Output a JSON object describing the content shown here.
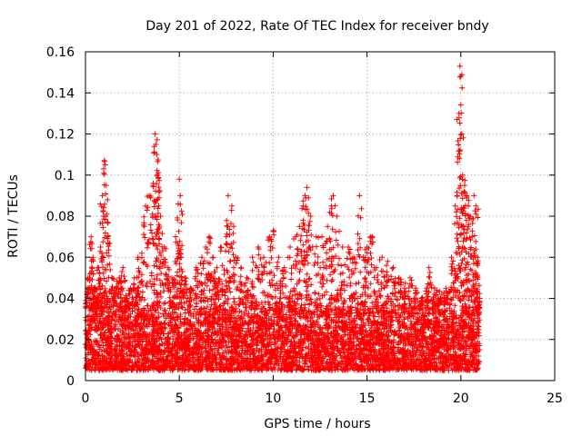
{
  "chart_data": {
    "type": "scatter",
    "title": "Day 201 of 2022, Rate Of TEC Index for receiver bndy",
    "xlabel": "GPS time / hours",
    "ylabel": "ROTI / TECUs",
    "xlim": [
      0,
      25
    ],
    "ylim": [
      0,
      0.16
    ],
    "x_ticks": [
      "0",
      "5",
      "10",
      "15",
      "20",
      "25"
    ],
    "y_ticks": [
      "0",
      "0.02",
      "0.04",
      "0.06",
      "0.08",
      "0.1",
      "0.12",
      "0.14",
      "0.16"
    ],
    "grid": true,
    "marker": "+",
    "color": "#ff0000",
    "data_range_hours": [
      0,
      21
    ],
    "baseline_band": [
      0.005,
      0.035
    ],
    "x": [
      0.1,
      0.2,
      0.3,
      0.4,
      0.5,
      0.6,
      0.7,
      0.8,
      0.9,
      1.0,
      1.05,
      1.1,
      1.2,
      1.4,
      1.6,
      1.8,
      2.0,
      2.2,
      2.4,
      2.6,
      2.8,
      3.0,
      3.2,
      3.4,
      3.6,
      3.7,
      3.75,
      3.8,
      3.85,
      3.9,
      4.0,
      4.2,
      4.4,
      4.6,
      4.8,
      5.0,
      5.05,
      5.1,
      5.3,
      5.6,
      5.9,
      6.2,
      6.4,
      6.6,
      6.8,
      7.0,
      7.2,
      7.5,
      7.6,
      7.8,
      8.0,
      8.3,
      8.6,
      8.9,
      9.2,
      9.5,
      9.8,
      10.0,
      10.3,
      10.6,
      10.9,
      11.2,
      11.4,
      11.6,
      11.7,
      11.8,
      12.0,
      12.3,
      12.6,
      12.9,
      13.1,
      13.2,
      13.4,
      13.7,
      14.0,
      14.3,
      14.6,
      14.8,
      15.0,
      15.2,
      15.5,
      15.8,
      16.1,
      16.4,
      16.7,
      17.0,
      17.3,
      17.6,
      17.9,
      18.2,
      18.3,
      18.6,
      18.9,
      19.2,
      19.5,
      19.7,
      19.8,
      19.9,
      19.95,
      20.0,
      20.05,
      20.1,
      20.2,
      20.3,
      20.4,
      20.5,
      20.6,
      20.7,
      20.8,
      20.9,
      21.0
    ],
    "y": [
      0.045,
      0.05,
      0.07,
      0.06,
      0.045,
      0.04,
      0.055,
      0.065,
      0.09,
      0.107,
      0.105,
      0.095,
      0.07,
      0.05,
      0.045,
      0.05,
      0.055,
      0.04,
      0.045,
      0.05,
      0.06,
      0.062,
      0.085,
      0.09,
      0.095,
      0.12,
      0.115,
      0.11,
      0.1,
      0.085,
      0.08,
      0.065,
      0.055,
      0.05,
      0.07,
      0.098,
      0.09,
      0.06,
      0.05,
      0.045,
      0.055,
      0.06,
      0.065,
      0.07,
      0.06,
      0.055,
      0.065,
      0.07,
      0.09,
      0.085,
      0.06,
      0.055,
      0.05,
      0.06,
      0.065,
      0.06,
      0.07,
      0.073,
      0.06,
      0.055,
      0.065,
      0.07,
      0.075,
      0.085,
      0.09,
      0.094,
      0.08,
      0.07,
      0.07,
      0.075,
      0.085,
      0.09,
      0.08,
      0.065,
      0.065,
      0.06,
      0.09,
      0.06,
      0.065,
      0.07,
      0.055,
      0.06,
      0.058,
      0.055,
      0.05,
      0.045,
      0.05,
      0.045,
      0.04,
      0.045,
      0.055,
      0.045,
      0.04,
      0.045,
      0.06,
      0.085,
      0.09,
      0.13,
      0.153,
      0.148,
      0.12,
      0.1,
      0.095,
      0.09,
      0.085,
      0.08,
      0.07,
      0.09,
      0.085,
      0.06,
      0.04
    ]
  }
}
